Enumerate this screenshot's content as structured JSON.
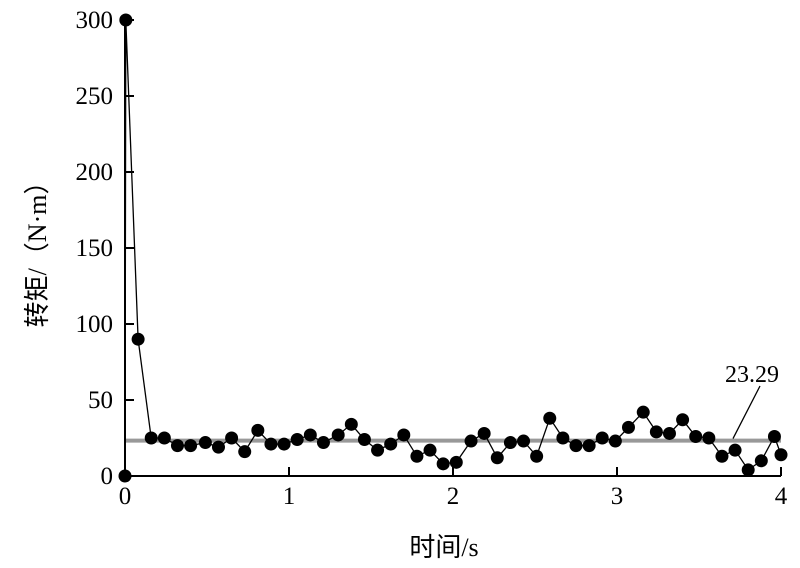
{
  "chart_data": {
    "type": "line",
    "title": "",
    "xlabel": "时间/s",
    "ylabel": "转矩/（N·m）",
    "xlim": [
      0,
      4
    ],
    "ylim": [
      0,
      300
    ],
    "x_ticks": [
      "0",
      "1",
      "2",
      "3",
      "4"
    ],
    "y_ticks": [
      "0",
      "50",
      "100",
      "150",
      "200",
      "250",
      "300"
    ],
    "grid": false,
    "legend": "none",
    "series": [
      {
        "color": "#000000",
        "marker": "filled-circle",
        "x": [
          0,
          0.005,
          0.08,
          0.16,
          0.24,
          0.32,
          0.4,
          0.49,
          0.57,
          0.65,
          0.73,
          0.81,
          0.89,
          0.97,
          1.05,
          1.13,
          1.21,
          1.3,
          1.38,
          1.46,
          1.54,
          1.62,
          1.7,
          1.78,
          1.86,
          1.94,
          2.02,
          2.11,
          2.19,
          2.27,
          2.35,
          2.43,
          2.51,
          2.59,
          2.67,
          2.75,
          2.83,
          2.91,
          2.99,
          3.07,
          3.16,
          3.24,
          3.32,
          3.4,
          3.48,
          3.56,
          3.64,
          3.72,
          3.8,
          3.88,
          3.96,
          4.0
        ],
        "y": [
          0,
          300,
          90,
          25,
          25,
          20,
          20,
          22,
          19,
          25,
          16,
          30,
          21,
          21,
          24,
          27,
          22,
          27,
          34,
          24,
          17,
          21,
          27,
          13,
          17,
          8,
          9,
          23,
          28,
          12,
          22,
          23,
          13,
          38,
          25,
          20,
          20,
          25,
          23,
          32,
          42,
          29,
          28,
          37,
          26,
          25,
          13,
          17,
          4,
          10,
          26,
          14
        ]
      }
    ],
    "reference_line": {
      "value": 23.29,
      "color": "#999999",
      "label": "23.29"
    }
  }
}
